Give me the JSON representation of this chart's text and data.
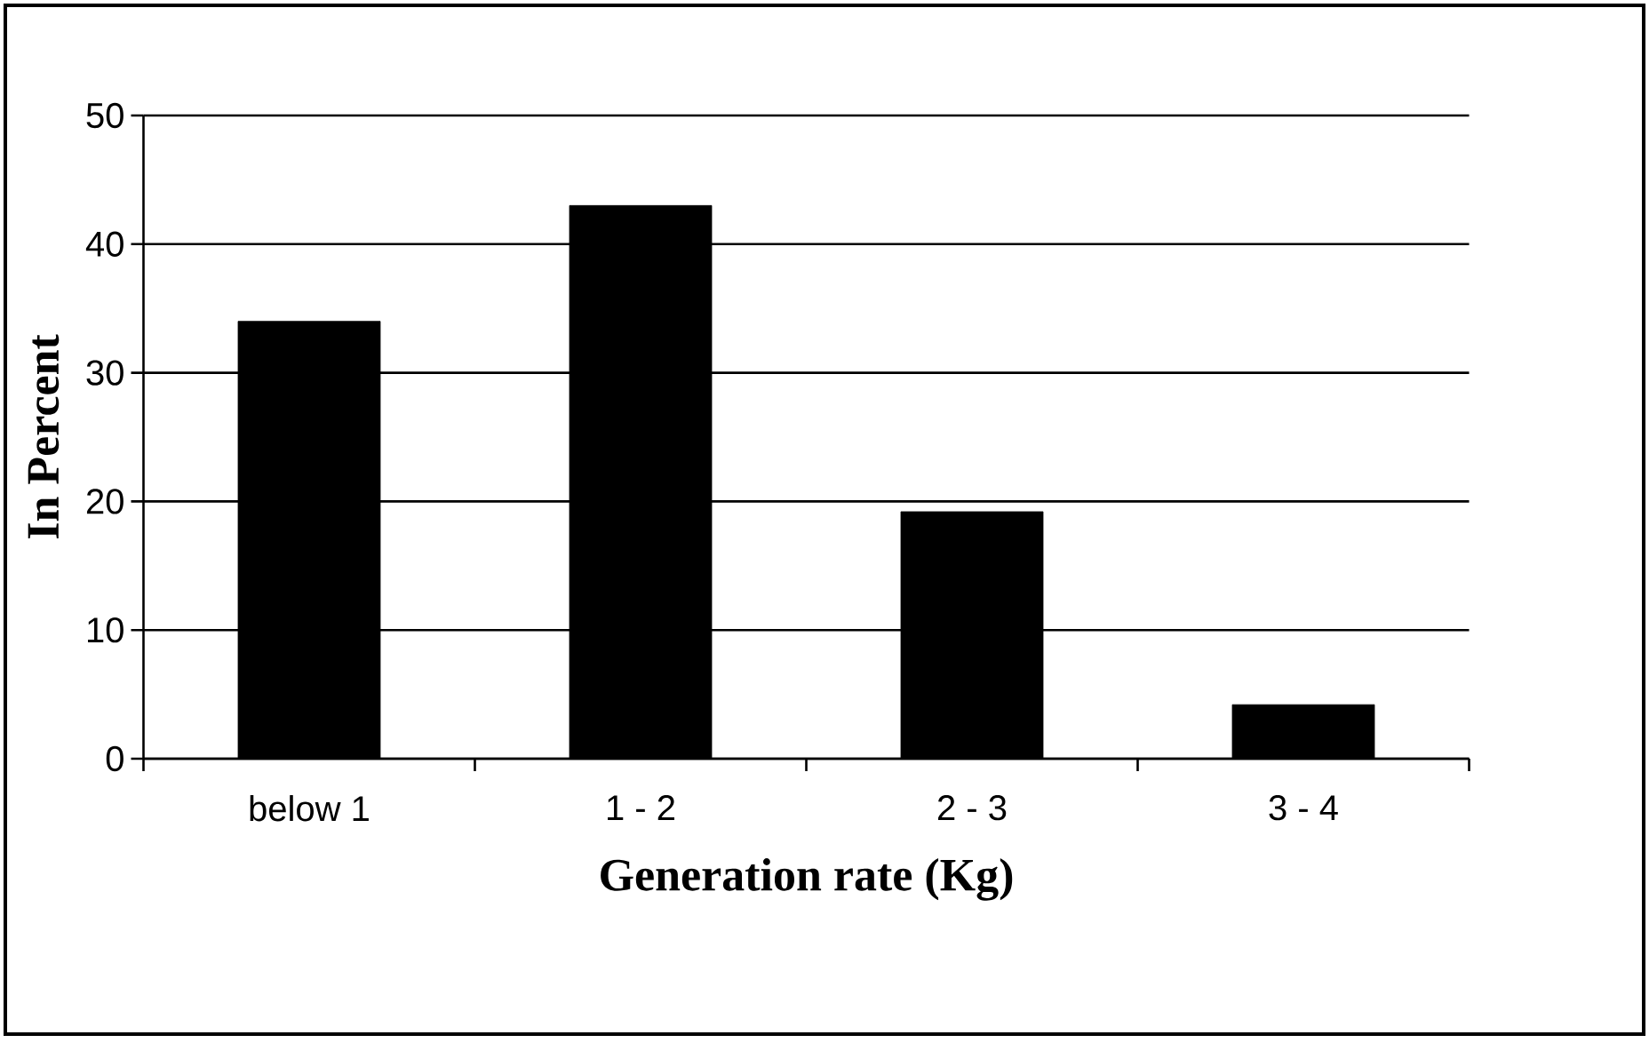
{
  "chart_data": {
    "type": "bar",
    "xlabel": "Generation rate (Kg)",
    "ylabel": "In Percent",
    "categories": [
      "below 1",
      "1 - 2",
      "2 - 3",
      "3 - 4"
    ],
    "values": [
      34,
      43,
      19.2,
      4.2
    ],
    "color": "#000000",
    "ylim": [
      0,
      50
    ],
    "yticks": [
      0,
      10,
      20,
      30,
      40,
      50
    ],
    "grid": "y"
  }
}
